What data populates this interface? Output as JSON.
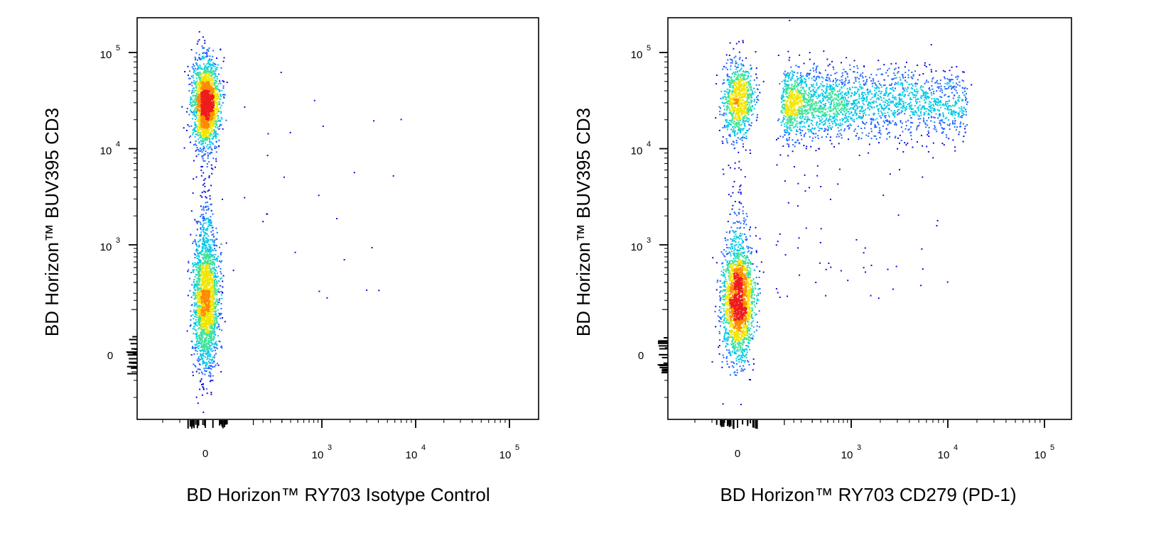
{
  "palette": {
    "density": [
      "#0a0ad8",
      "#1e64ff",
      "#00c8e6",
      "#3de39b",
      "#f2e600",
      "#ff8a00",
      "#ee1c1c"
    ],
    "axis": "#000000",
    "background": "#ffffff"
  },
  "chart_data": [
    {
      "type": "scatter",
      "subtype": "flow-cytometry-pseudocolor-density",
      "title": "",
      "xlabel": "BD Horizon™ RY703 Isotype Control",
      "ylabel": "BD Horizon™ BUV395 CD3",
      "x_scale": "biexponential",
      "y_scale": "biexponential",
      "x_ticks": [
        {
          "value": 0,
          "label": "0"
        },
        {
          "value": 1000,
          "base": "10",
          "exp": "3"
        },
        {
          "value": 10000,
          "base": "10",
          "exp": "4"
        },
        {
          "value": 100000,
          "base": "10",
          "exp": "5"
        }
      ],
      "y_ticks": [
        {
          "value": 0,
          "label": "0"
        },
        {
          "value": 1000,
          "base": "10",
          "exp": "3"
        },
        {
          "value": 10000,
          "base": "10",
          "exp": "4"
        },
        {
          "value": 100000,
          "base": "10",
          "exp": "5"
        }
      ],
      "populations": [
        {
          "x_center": 0,
          "y_center": 30000,
          "x_spread_decades": 0.15,
          "y_spread_decades": 0.22,
          "events": 2200
        },
        {
          "x_center": 0,
          "y_center": 150,
          "x_spread_decades": 0.15,
          "y_spread_decades": 0.35,
          "events": 2000
        },
        {
          "x_center": 0,
          "y_center": 1000,
          "x_spread_decades": 0.12,
          "y_spread_decades": 0.5,
          "events": 220
        }
      ],
      "grid": false,
      "legend": "none"
    },
    {
      "type": "scatter",
      "subtype": "flow-cytometry-pseudocolor-density",
      "title": "",
      "xlabel": "BD Horizon™ RY703 CD279 (PD-1)",
      "ylabel": "BD Horizon™ BUV395 CD3",
      "x_scale": "biexponential",
      "y_scale": "biexponential",
      "x_ticks": [
        {
          "value": 0,
          "label": "0"
        },
        {
          "value": 1000,
          "base": "10",
          "exp": "3"
        },
        {
          "value": 10000,
          "base": "10",
          "exp": "4"
        },
        {
          "value": 100000,
          "base": "10",
          "exp": "5"
        }
      ],
      "y_ticks": [
        {
          "value": 0,
          "label": "0"
        },
        {
          "value": 1000,
          "base": "10",
          "exp": "3"
        },
        {
          "value": 10000,
          "base": "10",
          "exp": "4"
        },
        {
          "value": 100000,
          "base": "10",
          "exp": "5"
        }
      ],
      "populations": [
        {
          "x_center": 0,
          "y_center": 32000,
          "x_spread_decades": 0.18,
          "y_spread_decades": 0.2,
          "events": 900
        },
        {
          "x_range": [
            100,
            15000
          ],
          "y_center": 30000,
          "y_spread_decades": 0.18,
          "events": 2400
        },
        {
          "x_center": 0,
          "y_center": 150,
          "x_spread_decades": 0.18,
          "y_spread_decades": 0.3,
          "events": 2200
        },
        {
          "x_center": 0,
          "y_center": 2000,
          "x_spread_decades": 0.12,
          "y_spread_decades": 0.5,
          "events": 90
        }
      ],
      "grid": false,
      "legend": "none"
    }
  ]
}
